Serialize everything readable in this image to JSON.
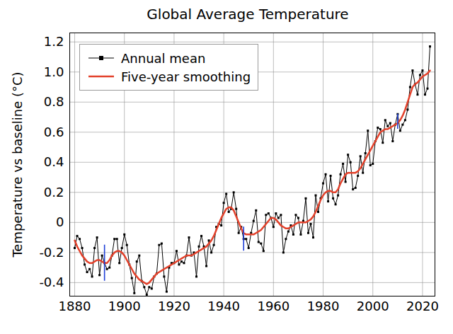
{
  "chart_data": {
    "type": "line",
    "title": "Global Average Temperature",
    "y_label": "Temperature vs baseline (°C)",
    "x": [
      1880,
      1881,
      1882,
      1883,
      1884,
      1885,
      1886,
      1887,
      1888,
      1889,
      1890,
      1891,
      1892,
      1893,
      1894,
      1895,
      1896,
      1897,
      1898,
      1899,
      1900,
      1901,
      1902,
      1903,
      1904,
      1905,
      1906,
      1907,
      1908,
      1909,
      1910,
      1911,
      1912,
      1913,
      1914,
      1915,
      1916,
      1917,
      1918,
      1919,
      1920,
      1921,
      1922,
      1923,
      1924,
      1925,
      1926,
      1927,
      1928,
      1929,
      1930,
      1931,
      1932,
      1933,
      1934,
      1935,
      1936,
      1937,
      1938,
      1939,
      1940,
      1941,
      1942,
      1943,
      1944,
      1945,
      1946,
      1947,
      1948,
      1949,
      1950,
      1951,
      1952,
      1953,
      1954,
      1955,
      1956,
      1957,
      1958,
      1959,
      1960,
      1961,
      1962,
      1963,
      1964,
      1965,
      1966,
      1967,
      1968,
      1969,
      1970,
      1971,
      1972,
      1973,
      1974,
      1975,
      1976,
      1977,
      1978,
      1979,
      1980,
      1981,
      1982,
      1983,
      1984,
      1985,
      1986,
      1987,
      1988,
      1989,
      1990,
      1991,
      1992,
      1993,
      1994,
      1995,
      1996,
      1997,
      1998,
      1999,
      2000,
      2001,
      2002,
      2003,
      2004,
      2005,
      2006,
      2007,
      2008,
      2009,
      2010,
      2011,
      2012,
      2013,
      2014,
      2015,
      2016,
      2017,
      2018,
      2019,
      2020,
      2021,
      2022,
      2023
    ],
    "series": [
      {
        "name": "Annual mean",
        "color": "#000000",
        "marker": "square",
        "values": [
          -0.17,
          -0.09,
          -0.11,
          -0.17,
          -0.28,
          -0.33,
          -0.31,
          -0.36,
          -0.17,
          -0.1,
          -0.35,
          -0.22,
          -0.27,
          -0.31,
          -0.3,
          -0.22,
          -0.11,
          -0.11,
          -0.27,
          -0.17,
          -0.08,
          -0.15,
          -0.28,
          -0.37,
          -0.47,
          -0.26,
          -0.22,
          -0.39,
          -0.43,
          -0.48,
          -0.43,
          -0.44,
          -0.36,
          -0.34,
          -0.15,
          -0.14,
          -0.36,
          -0.46,
          -0.3,
          -0.27,
          -0.27,
          -0.19,
          -0.28,
          -0.26,
          -0.27,
          -0.22,
          -0.1,
          -0.22,
          -0.2,
          -0.36,
          -0.16,
          -0.09,
          -0.16,
          -0.29,
          -0.12,
          -0.2,
          -0.15,
          -0.03,
          -0.01,
          -0.02,
          0.13,
          0.19,
          0.07,
          0.09,
          0.2,
          0.09,
          -0.07,
          -0.03,
          -0.11,
          -0.11,
          -0.17,
          -0.07,
          0.01,
          0.08,
          -0.13,
          -0.14,
          -0.19,
          0.05,
          0.06,
          0.03,
          -0.03,
          0.06,
          0.03,
          0.05,
          -0.2,
          -0.11,
          -0.06,
          -0.02,
          -0.08,
          0.05,
          0.03,
          -0.08,
          0.01,
          0.16,
          -0.07,
          -0.01,
          -0.1,
          0.18,
          0.07,
          0.16,
          0.26,
          0.32,
          0.14,
          0.31,
          0.16,
          0.12,
          0.18,
          0.32,
          0.39,
          0.27,
          0.45,
          0.4,
          0.22,
          0.23,
          0.31,
          0.44,
          0.33,
          0.46,
          0.61,
          0.38,
          0.39,
          0.54,
          0.63,
          0.62,
          0.53,
          0.68,
          0.64,
          0.66,
          0.54,
          0.65,
          0.72,
          0.61,
          0.65,
          0.68,
          0.75,
          0.9,
          1.01,
          0.92,
          0.85,
          0.98,
          1.01,
          0.85,
          0.89,
          1.17
        ]
      },
      {
        "name": "Five-year smoothing",
        "color": "#e3412b",
        "values": [
          -0.12,
          -0.16,
          -0.19,
          -0.22,
          -0.24,
          -0.26,
          -0.27,
          -0.27,
          -0.26,
          -0.25,
          -0.25,
          -0.26,
          -0.27,
          -0.27,
          -0.25,
          -0.22,
          -0.2,
          -0.19,
          -0.19,
          -0.2,
          -0.22,
          -0.25,
          -0.28,
          -0.31,
          -0.34,
          -0.36,
          -0.38,
          -0.39,
          -0.4,
          -0.41,
          -0.4,
          -0.38,
          -0.36,
          -0.34,
          -0.33,
          -0.32,
          -0.31,
          -0.3,
          -0.29,
          -0.28,
          -0.27,
          -0.26,
          -0.25,
          -0.24,
          -0.23,
          -0.22,
          -0.22,
          -0.22,
          -0.21,
          -0.2,
          -0.19,
          -0.18,
          -0.17,
          -0.16,
          -0.14,
          -0.12,
          -0.09,
          -0.05,
          -0.01,
          0.03,
          0.06,
          0.09,
          0.1,
          0.1,
          0.08,
          0.04,
          0.0,
          -0.04,
          -0.07,
          -0.08,
          -0.08,
          -0.08,
          -0.08,
          -0.07,
          -0.06,
          -0.05,
          -0.03,
          -0.01,
          0.01,
          0.03,
          0.03,
          0.02,
          0.0,
          -0.02,
          -0.03,
          -0.04,
          -0.04,
          -0.03,
          -0.02,
          -0.01,
          0.0,
          0.0,
          0.0,
          0.0,
          0.01,
          0.02,
          0.04,
          0.07,
          0.11,
          0.15,
          0.18,
          0.2,
          0.21,
          0.21,
          0.2,
          0.2,
          0.22,
          0.26,
          0.29,
          0.32,
          0.33,
          0.33,
          0.33,
          0.33,
          0.34,
          0.36,
          0.39,
          0.42,
          0.45,
          0.48,
          0.51,
          0.54,
          0.57,
          0.6,
          0.61,
          0.62,
          0.62,
          0.63,
          0.64,
          0.65,
          0.66,
          0.68,
          0.71,
          0.75,
          0.8,
          0.85,
          0.9,
          0.92,
          0.93,
          0.95,
          0.97,
          0.98,
          0.99,
          1.01
        ]
      }
    ],
    "error_bars": [
      {
        "x": 1892,
        "low": -0.39,
        "high": -0.15
      },
      {
        "x": 1948,
        "low": -0.19,
        "high": -0.03
      },
      {
        "x": 2010,
        "low": 0.62,
        "high": 0.72
      }
    ],
    "xlim": [
      1878,
      2025
    ],
    "xticks": [
      1880,
      1900,
      1920,
      1940,
      1960,
      1980,
      2000,
      2020
    ],
    "ylim": [
      -0.49,
      1.26
    ],
    "yticks": [
      -0.4,
      -0.2,
      0,
      0.2,
      0.4,
      0.6,
      0.8,
      {
        "value": 1.0,
        "label": "1.0"
      },
      1.2
    ],
    "grid": true,
    "legend": "upper left"
  }
}
